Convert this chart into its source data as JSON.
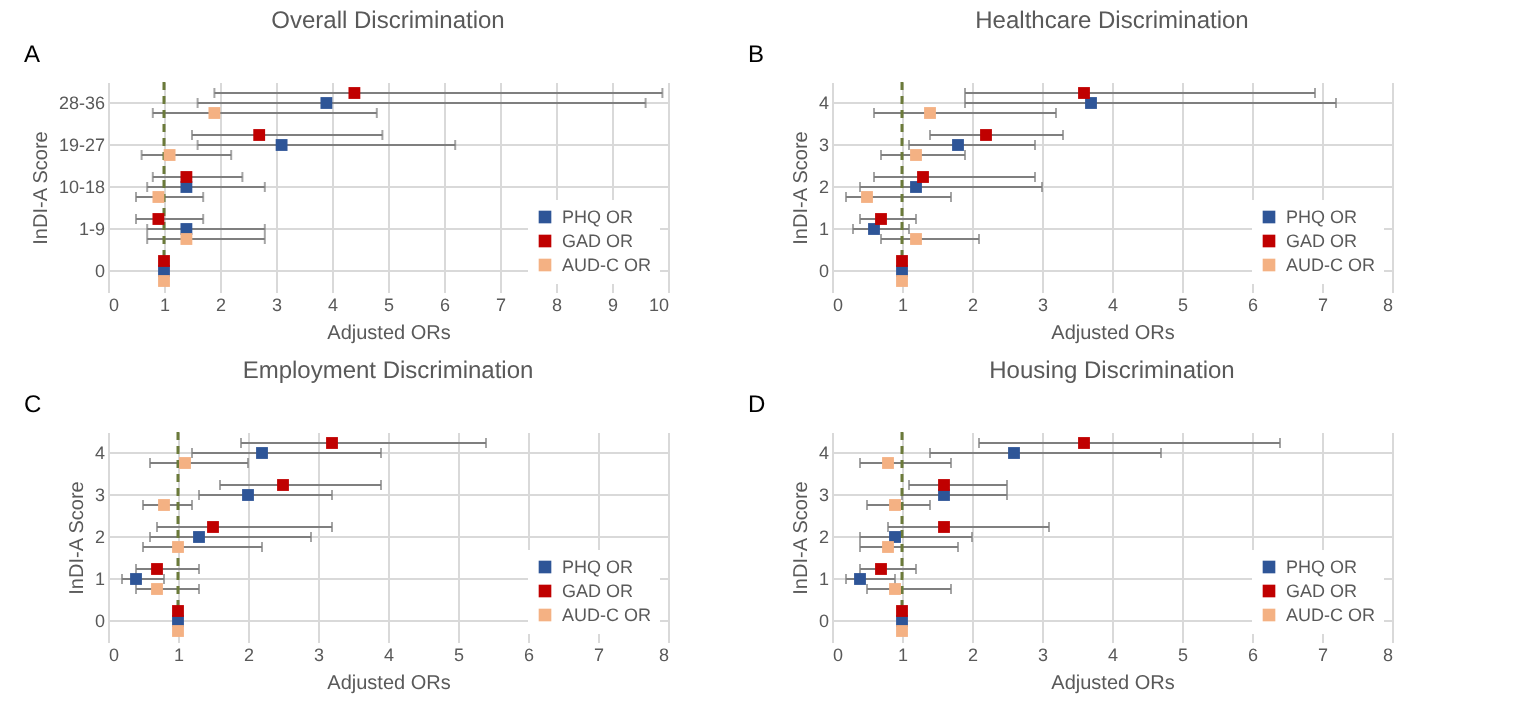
{
  "chart_data": [
    {
      "type": "scatter",
      "orientation": "horizontal",
      "title": "Overall Discrimination",
      "xlabel": "Adjusted ORs",
      "ylabel": "InDI-A Score",
      "annotations": [
        "A"
      ],
      "categories": [
        "28-36",
        "19-27",
        "10-18",
        "1-9",
        "0"
      ],
      "xlim": [
        0,
        10
      ],
      "xticks": [
        0,
        1,
        2,
        3,
        4,
        5,
        6,
        7,
        8,
        9,
        10
      ],
      "grid": true,
      "legend": "bottom right",
      "marker": "square",
      "ref_lines": [
        {
          "axis": "x",
          "value": 1,
          "color": "#6b7a3a",
          "line_style": "dashed"
        }
      ],
      "series": [
        {
          "name": "PHQ OR",
          "color": "#2e5597",
          "values": [
            3.9,
            3.1,
            1.4,
            1.4,
            1
          ],
          "errors": [
            [
              1.6,
              9.6
            ],
            [
              1.6,
              6.2
            ],
            [
              0.7,
              2.8
            ],
            [
              0.7,
              2.8
            ],
            null
          ]
        },
        {
          "name": "GAD OR",
          "color": "#c00000",
          "values": [
            4.4,
            2.7,
            1.4,
            0.9,
            1
          ],
          "errors": [
            [
              1.9,
              9.9
            ],
            [
              1.5,
              4.9
            ],
            [
              0.8,
              2.4
            ],
            [
              0.5,
              1.7
            ],
            null
          ]
        },
        {
          "name": "AUD-C OR",
          "color": "#f4b183",
          "values": [
            1.9,
            1.1,
            0.9,
            1.4,
            1
          ],
          "errors": [
            [
              0.8,
              4.8
            ],
            [
              0.6,
              2.2
            ],
            [
              0.5,
              1.7
            ],
            [
              0.7,
              2.8
            ],
            null
          ]
        }
      ]
    },
    {
      "type": "scatter",
      "orientation": "horizontal",
      "title": "Healthcare Discrimination",
      "xlabel": "Adjusted ORs",
      "ylabel": "InDI-A Score",
      "annotations": [
        "B"
      ],
      "categories": [
        "4",
        "3",
        "2",
        "1",
        "0"
      ],
      "xlim": [
        0,
        8
      ],
      "xticks": [
        0,
        1,
        2,
        3,
        4,
        5,
        6,
        7,
        8
      ],
      "grid": true,
      "legend": "bottom right",
      "marker": "square",
      "ref_lines": [
        {
          "axis": "x",
          "value": 1,
          "color": "#6b7a3a",
          "line_style": "dashed"
        }
      ],
      "series": [
        {
          "name": "PHQ OR",
          "color": "#2e5597",
          "values": [
            3.7,
            1.8,
            1.2,
            0.6,
            1
          ],
          "errors": [
            [
              1.9,
              7.2
            ],
            [
              1.1,
              2.9
            ],
            [
              0.4,
              3.0
            ],
            [
              0.3,
              1.1
            ],
            null
          ]
        },
        {
          "name": "GAD OR",
          "color": "#c00000",
          "values": [
            3.6,
            2.2,
            1.3,
            0.7,
            1
          ],
          "errors": [
            [
              1.9,
              6.9
            ],
            [
              1.4,
              3.3
            ],
            [
              0.6,
              2.9
            ],
            [
              0.4,
              1.2
            ],
            null
          ]
        },
        {
          "name": "AUD-C OR",
          "color": "#f4b183",
          "values": [
            1.4,
            1.2,
            0.5,
            1.2,
            1
          ],
          "errors": [
            [
              0.6,
              3.2
            ],
            [
              0.7,
              1.9
            ],
            [
              0.2,
              1.7
            ],
            [
              0.7,
              2.1
            ],
            null
          ]
        }
      ]
    },
    {
      "type": "scatter",
      "orientation": "horizontal",
      "title": "Employment Discrimination",
      "xlabel": "Adjusted ORs",
      "ylabel": "InDI-A Score",
      "annotations": [
        "C"
      ],
      "categories": [
        "4",
        "3",
        "2",
        "1",
        "0"
      ],
      "xlim": [
        0,
        8
      ],
      "xticks": [
        0,
        1,
        2,
        3,
        4,
        5,
        6,
        7,
        8
      ],
      "grid": true,
      "legend": "bottom right",
      "marker": "square",
      "ref_lines": [
        {
          "axis": "x",
          "value": 1,
          "color": "#6b7a3a",
          "line_style": "dashed"
        }
      ],
      "series": [
        {
          "name": "PHQ OR",
          "color": "#2e5597",
          "values": [
            2.2,
            2.0,
            1.3,
            0.4,
            1
          ],
          "errors": [
            [
              1.2,
              3.9
            ],
            [
              1.3,
              3.2
            ],
            [
              0.6,
              2.9
            ],
            [
              0.2,
              0.8
            ],
            null
          ]
        },
        {
          "name": "GAD OR",
          "color": "#c00000",
          "values": [
            3.2,
            2.5,
            1.5,
            0.7,
            1
          ],
          "errors": [
            [
              1.9,
              5.4
            ],
            [
              1.6,
              3.9
            ],
            [
              0.7,
              3.2
            ],
            [
              0.4,
              1.3
            ],
            null
          ]
        },
        {
          "name": "AUD-C OR",
          "color": "#f4b183",
          "values": [
            1.1,
            0.8,
            1.0,
            0.7,
            1
          ],
          "errors": [
            [
              0.6,
              2.0
            ],
            [
              0.5,
              1.2
            ],
            [
              0.5,
              2.2
            ],
            [
              0.4,
              1.3
            ],
            null
          ]
        }
      ]
    },
    {
      "type": "scatter",
      "orientation": "horizontal",
      "title": "Housing Discrimination",
      "xlabel": "Adjusted ORs",
      "ylabel": "InDI-A Score",
      "annotations": [
        "D"
      ],
      "categories": [
        "4",
        "3",
        "2",
        "1",
        "0"
      ],
      "xlim": [
        0,
        8
      ],
      "xticks": [
        0,
        1,
        2,
        3,
        4,
        5,
        6,
        7,
        8
      ],
      "grid": true,
      "legend": "bottom right",
      "marker": "square",
      "ref_lines": [
        {
          "axis": "x",
          "value": 1,
          "color": "#6b7a3a",
          "line_style": "dashed"
        }
      ],
      "series": [
        {
          "name": "PHQ OR",
          "color": "#2e5597",
          "values": [
            2.6,
            1.6,
            0.9,
            0.4,
            1
          ],
          "errors": [
            [
              1.4,
              4.7
            ],
            [
              1.0,
              2.5
            ],
            [
              0.4,
              2.0
            ],
            [
              0.2,
              0.9
            ],
            null
          ]
        },
        {
          "name": "GAD OR",
          "color": "#c00000",
          "values": [
            3.6,
            1.6,
            1.6,
            0.7,
            1
          ],
          "errors": [
            [
              2.1,
              6.4
            ],
            [
              1.1,
              2.5
            ],
            [
              0.8,
              3.1
            ],
            [
              0.4,
              1.2
            ],
            null
          ]
        },
        {
          "name": "AUD-C OR",
          "color": "#f4b183",
          "values": [
            0.8,
            0.9,
            0.8,
            0.9,
            1
          ],
          "errors": [
            [
              0.4,
              1.7
            ],
            [
              0.5,
              1.4
            ],
            [
              0.4,
              1.8
            ],
            [
              0.5,
              1.7
            ],
            null
          ]
        }
      ]
    }
  ]
}
